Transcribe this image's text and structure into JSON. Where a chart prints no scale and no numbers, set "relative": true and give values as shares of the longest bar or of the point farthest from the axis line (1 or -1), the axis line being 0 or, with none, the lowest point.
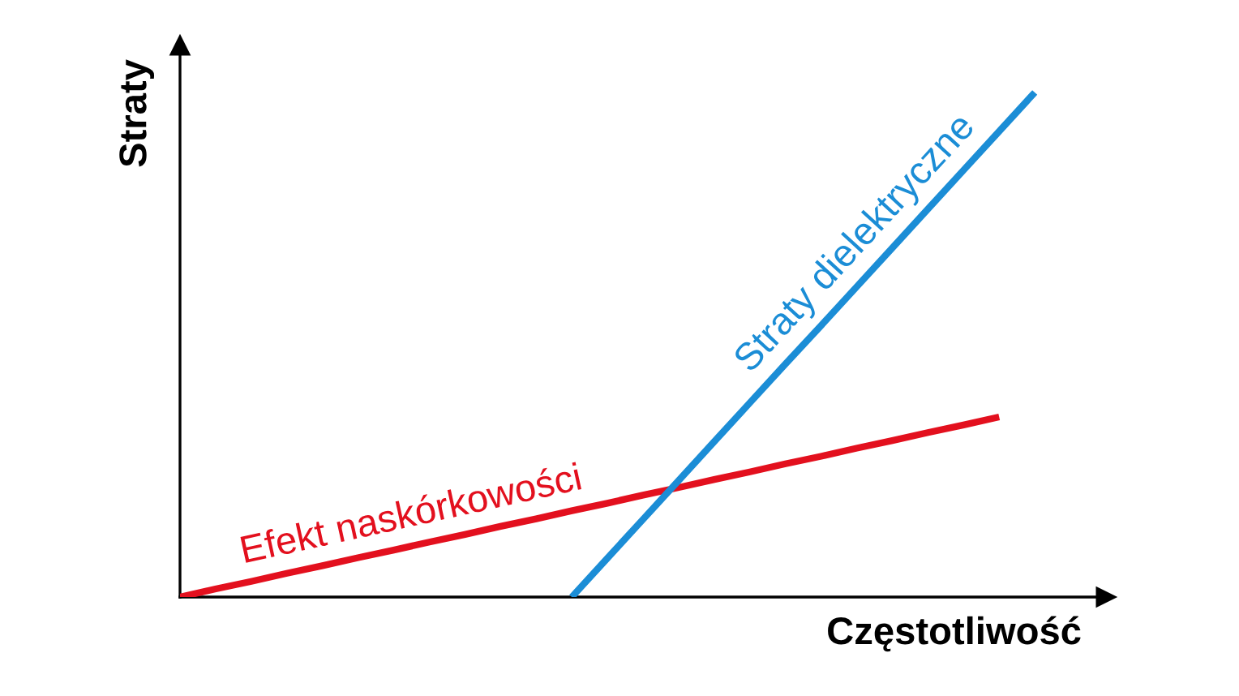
{
  "chart_data": {
    "type": "line",
    "relative": true,
    "xlabel": "Częstotliwość",
    "ylabel": "Straty",
    "categories": [
      null,
      null,
      null,
      null,
      null,
      null,
      null,
      null,
      null,
      null,
      null,
      null,
      null,
      null,
      null,
      null,
      null,
      null,
      null,
      null,
      null,
      null,
      null,
      null,
      null,
      null,
      null
    ],
    "series": [
      {
        "name": "Efekt naskórkowości",
        "color": "#e3101e",
        "values": [
          0,
          0.016,
          0.031,
          0.047,
          0.062,
          0.078,
          0.093,
          0.109,
          0.124,
          0.14,
          0.155,
          0.171,
          0.186,
          0.202,
          0.217,
          0.233,
          0.248,
          0.264,
          0.279,
          0.295,
          0.31,
          0.326,
          0.341,
          0.357,
          null,
          null,
          null
        ]
      },
      {
        "name": "Straty dielektryczne",
        "color": "#1b8dd6",
        "values": [
          null,
          null,
          null,
          null,
          null,
          null,
          null,
          null,
          null,
          null,
          null,
          0,
          0.077,
          0.154,
          0.231,
          0.308,
          0.385,
          0.462,
          0.538,
          0.615,
          0.692,
          0.769,
          0.846,
          0.923,
          1,
          null,
          null
        ]
      }
    ]
  }
}
